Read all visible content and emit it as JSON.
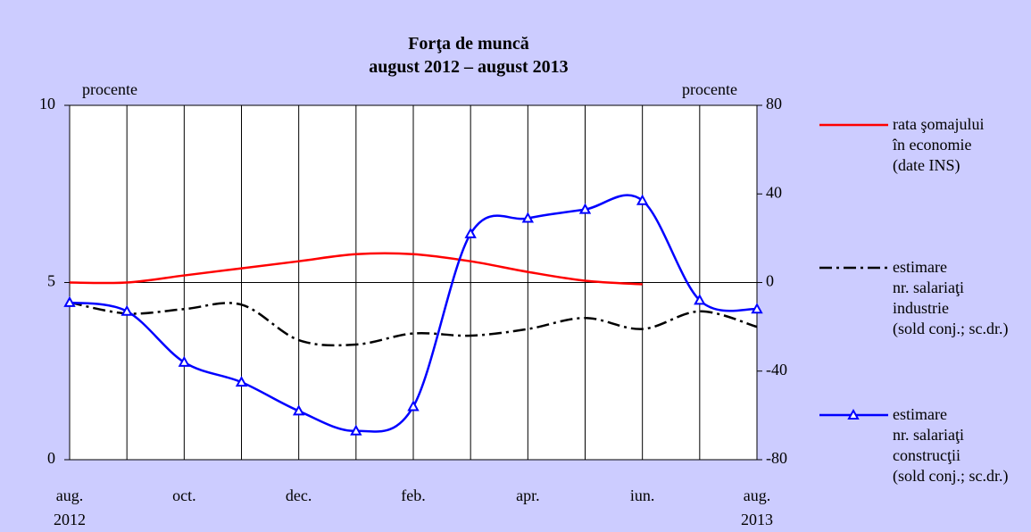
{
  "chart_data": {
    "type": "line",
    "title": "Forţa de muncă\naugust 2012 – august 2013",
    "ylabel": "procente",
    "y2label": "procente",
    "categories": [
      "aug.\n2012",
      null,
      "oct.",
      null,
      "dec.",
      null,
      "feb.",
      null,
      "apr.",
      null,
      "iun.",
      null,
      "aug.\n2013"
    ],
    "ylim": [
      0,
      10
    ],
    "yticks": [
      0,
      5,
      10
    ],
    "y2lim": [
      -80,
      80
    ],
    "y2ticks": [
      -80,
      -40,
      0,
      40,
      80
    ],
    "grid": true,
    "smooth": true,
    "legend": "right",
    "series": [
      {
        "name": "rata şomajului\nîn economie\n(date INS)",
        "color": "#ff0000",
        "style": "solid",
        "axis": "y",
        "values": [
          5.0,
          5.0,
          5.2,
          5.4,
          5.6,
          5.8,
          5.8,
          5.6,
          5.3,
          5.05,
          4.95,
          null,
          null
        ]
      },
      {
        "name": "estimare\nnr. salariaţi\nindustrie\n(sold conj.; sc.dr.)",
        "color": "#000000",
        "style": "dashdot",
        "axis": "y2",
        "values": [
          -9,
          -14,
          -12,
          -10,
          -26,
          -28,
          -23,
          -24,
          -21,
          -16,
          -21,
          -13,
          -20
        ]
      },
      {
        "name": "estimare\nnr. salariaţi\nconstrucţii\n(sold conj.; sc.dr.)",
        "color": "#0000ff",
        "style": "solid",
        "marker": "triangle",
        "axis": "y2",
        "values": [
          -9,
          -13,
          -36,
          -45,
          -58,
          -67,
          -56,
          22,
          29,
          33,
          37,
          -8,
          -12
        ]
      }
    ]
  }
}
